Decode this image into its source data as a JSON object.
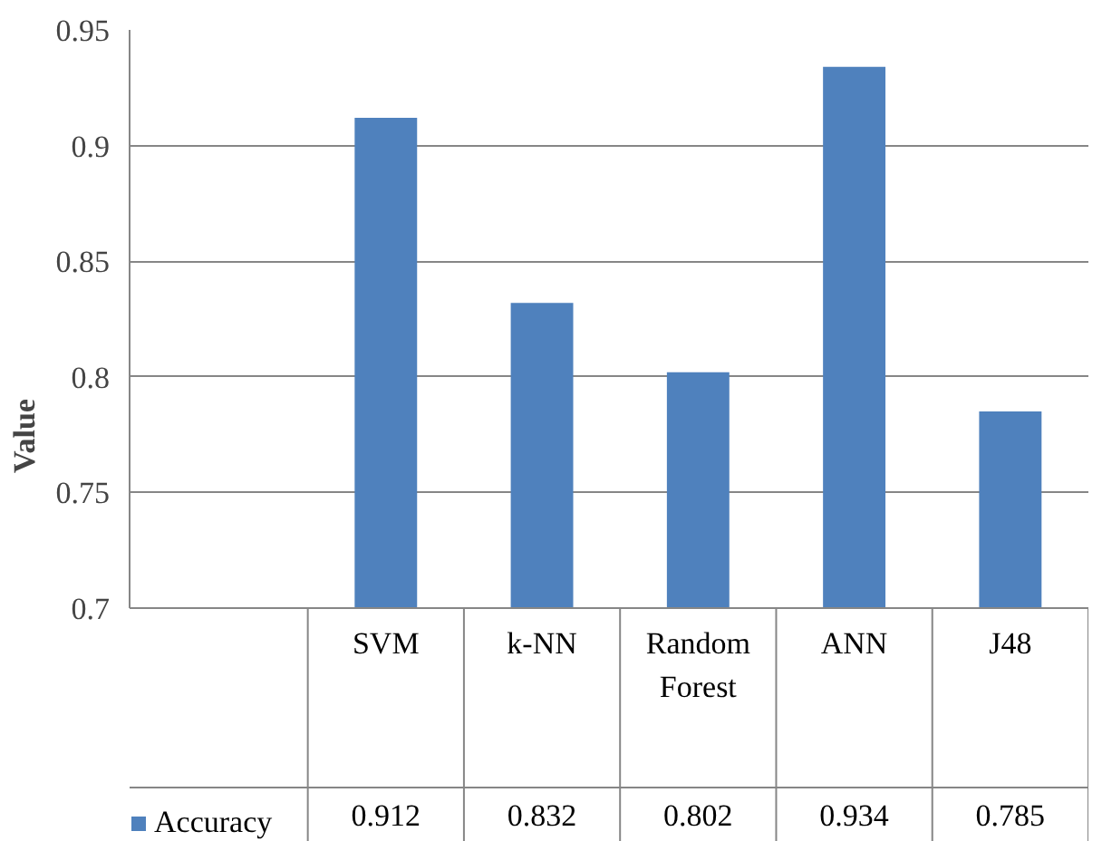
{
  "chart_data": {
    "type": "bar",
    "ylabel": "Value",
    "categories": [
      "SVM",
      "k-NN",
      "Random Forest",
      "ANN",
      "J48"
    ],
    "series": [
      {
        "name": "Accuracy",
        "color": "#4f81bd",
        "values": [
          0.912,
          0.832,
          0.802,
          0.934,
          0.785
        ]
      }
    ],
    "ylim": [
      0.7,
      0.95
    ],
    "yticks": [
      0.7,
      0.75,
      0.8,
      0.85,
      0.9,
      0.95
    ],
    "grid": "y",
    "legend": "bottom left",
    "data_labels": true
  }
}
